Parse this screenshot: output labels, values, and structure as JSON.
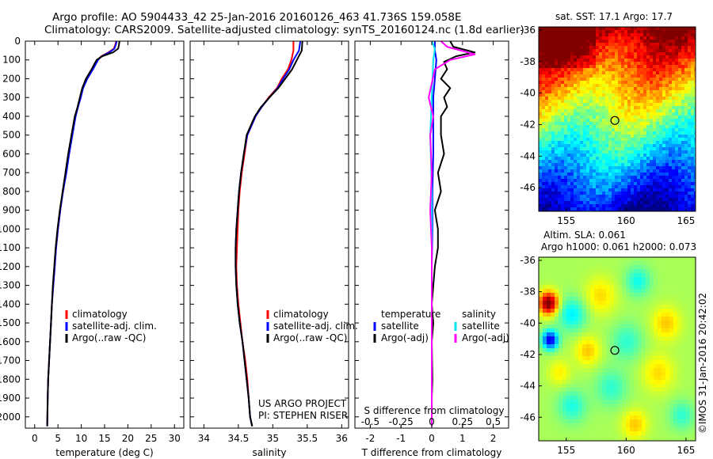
{
  "header": {
    "line1": "Argo profile: AO 5904433_42 25-Jan-2016 20160126_463 41.736S 159.058E",
    "line2": "Climatology: CARS2009. Satellite-adjusted climatology: synTS_20160124.nc (1.8d earlier)"
  },
  "side_text": "©IMOS 31-Jan-2016 20:42:02",
  "colors": {
    "climatology": "#ff0000",
    "satellite": "#0000ff",
    "argo": "#000000",
    "sal_satellite": "#00e5ee",
    "sal_argo": "#ff00ff"
  },
  "chart_data": [
    {
      "id": "temperature",
      "type": "line",
      "xlabel": "temperature (deg C)",
      "ylabel": "",
      "xlim": [
        -2,
        32
      ],
      "ylim": [
        2060,
        0
      ],
      "xticks": [
        0,
        5,
        10,
        15,
        20,
        25,
        30
      ],
      "xtick_labels": [
        "0",
        "5",
        "10",
        "15",
        "20",
        "25",
        "30"
      ],
      "yticks": [
        0,
        100,
        200,
        300,
        400,
        500,
        600,
        700,
        800,
        900,
        1000,
        1100,
        1200,
        1300,
        1400,
        1500,
        1600,
        1700,
        1800,
        1900,
        2000
      ],
      "ytick_labels": [
        "0",
        "100",
        "200",
        "300",
        "400",
        "500",
        "600",
        "700",
        "800",
        "900",
        "1000",
        "1100",
        "1200",
        "1300",
        "1400",
        "1500",
        "1600",
        "1700",
        "1800",
        "1900",
        "2000"
      ],
      "legend": [
        {
          "label": "climatology",
          "color_key": "climatology"
        },
        {
          "label": "satellite-adj. clim.",
          "color_key": "satellite"
        },
        {
          "label": "Argo(..raw -QC)",
          "color_key": "argo"
        }
      ],
      "series": [
        {
          "name": "climatology",
          "color_key": "climatology",
          "x": [
            17.5,
            17.3,
            17.0,
            15.8,
            14.3,
            13.5,
            12.4,
            11.2,
            10.3,
            9.8,
            9.3,
            8.7,
            8.0,
            7.3,
            6.7,
            6.0,
            5.5,
            5.0,
            4.6,
            4.3,
            4.0,
            3.7,
            3.5,
            3.3,
            3.1,
            2.9,
            2.8,
            2.7
          ],
          "y": [
            0,
            20,
            40,
            60,
            80,
            100,
            150,
            200,
            250,
            300,
            350,
            400,
            500,
            600,
            700,
            800,
            900,
            1000,
            1100,
            1200,
            1300,
            1400,
            1500,
            1600,
            1700,
            1800,
            1900,
            2050
          ]
        },
        {
          "name": "satellite-adj. clim.",
          "color_key": "satellite",
          "x": [
            17.6,
            17.4,
            17.1,
            16.0,
            14.4,
            13.6,
            12.5,
            11.3,
            10.4,
            9.9,
            9.3,
            8.8,
            8.1,
            7.4,
            6.8,
            6.1,
            5.5,
            5.0,
            4.6,
            4.3,
            4.0,
            3.7,
            3.5,
            3.3,
            3.1,
            2.9,
            2.8,
            2.7
          ],
          "y": [
            0,
            20,
            40,
            60,
            80,
            100,
            150,
            200,
            250,
            300,
            350,
            400,
            500,
            600,
            700,
            800,
            900,
            1000,
            1100,
            1200,
            1300,
            1400,
            1500,
            1600,
            1700,
            1800,
            1900,
            2050
          ]
        },
        {
          "name": "Argo(..raw -QC)",
          "color_key": "argo",
          "x": [
            18.2,
            18.1,
            17.9,
            16.8,
            14.5,
            13.3,
            12.2,
            11.0,
            10.2,
            9.7,
            9.2,
            8.6,
            7.9,
            7.2,
            6.6,
            6.0,
            5.4,
            4.9,
            4.5,
            4.2,
            3.9,
            3.7,
            3.5,
            3.3,
            3.1,
            2.9,
            2.8,
            2.7
          ],
          "y": [
            0,
            20,
            40,
            60,
            80,
            100,
            150,
            200,
            250,
            300,
            350,
            400,
            500,
            600,
            700,
            800,
            900,
            1000,
            1100,
            1200,
            1300,
            1400,
            1500,
            1600,
            1700,
            1800,
            1900,
            2050
          ]
        }
      ]
    },
    {
      "id": "salinity",
      "type": "line",
      "xlabel": "salinity",
      "xlim": [
        33.8,
        36.1
      ],
      "ylim": [
        2060,
        0
      ],
      "xticks": [
        34,
        34.5,
        35,
        35.5,
        36
      ],
      "xtick_labels": [
        "34",
        "34.5",
        "35",
        "35.5",
        "36"
      ],
      "legend": [
        {
          "label": "climatology",
          "color_key": "climatology"
        },
        {
          "label": "satellite-adj. clim.",
          "color_key": "satellite"
        },
        {
          "label": "Argo(..raw -QC)",
          "color_key": "argo"
        }
      ],
      "annotation": [
        "US ARGO PROJECT",
        "PI: STEPHEN RISER"
      ],
      "series": [
        {
          "name": "climatology",
          "color_key": "climatology",
          "x": [
            35.3,
            35.3,
            35.27,
            35.22,
            35.13,
            35.06,
            34.94,
            34.84,
            34.75,
            34.69,
            34.63,
            34.59,
            34.55,
            34.52,
            34.5,
            34.49,
            34.48,
            34.47,
            34.48,
            34.5,
            34.53,
            34.56,
            34.6,
            34.63,
            34.65,
            34.67,
            34.7
          ],
          "y": [
            0,
            50,
            100,
            150,
            200,
            250,
            300,
            350,
            400,
            450,
            500,
            600,
            700,
            800,
            900,
            1000,
            1100,
            1200,
            1300,
            1400,
            1500,
            1600,
            1700,
            1800,
            1900,
            2000,
            2050
          ]
        },
        {
          "name": "satellite-adj. clim.",
          "color_key": "satellite",
          "x": [
            35.4,
            35.38,
            35.3,
            35.24,
            35.15,
            35.07,
            34.95,
            34.84,
            34.75,
            34.69,
            34.63,
            34.58,
            34.54,
            34.51,
            34.49,
            34.47,
            34.46,
            34.46,
            34.47,
            34.49,
            34.52,
            34.56,
            34.59,
            34.62,
            34.65,
            34.67,
            34.7
          ],
          "y": [
            0,
            50,
            100,
            150,
            200,
            250,
            300,
            350,
            400,
            450,
            500,
            600,
            700,
            800,
            900,
            1000,
            1100,
            1200,
            1300,
            1400,
            1500,
            1600,
            1700,
            1800,
            1900,
            2000,
            2050
          ]
        },
        {
          "name": "Argo(..raw -QC)",
          "color_key": "argo",
          "x": [
            35.43,
            35.42,
            35.35,
            35.28,
            35.18,
            35.08,
            34.95,
            34.83,
            34.74,
            34.68,
            34.62,
            34.58,
            34.54,
            34.51,
            34.49,
            34.47,
            34.46,
            34.46,
            34.47,
            34.49,
            34.52,
            34.56,
            34.59,
            34.62,
            34.65,
            34.67,
            34.7
          ],
          "y": [
            0,
            50,
            100,
            150,
            200,
            250,
            300,
            350,
            400,
            450,
            500,
            600,
            700,
            800,
            900,
            1000,
            1100,
            1200,
            1300,
            1400,
            1500,
            1600,
            1700,
            1800,
            1900,
            2000,
            2050
          ]
        }
      ]
    },
    {
      "id": "difference",
      "type": "line",
      "xlabel": "T difference from climatology",
      "top_axis_label": "S difference from climatology",
      "xlim": [
        -2.5,
        2.5
      ],
      "ylim": [
        2060,
        0
      ],
      "xticks": [
        -2,
        -1,
        0,
        1,
        2
      ],
      "xtick_labels": [
        "-2",
        "-1",
        "0",
        "1",
        "2"
      ],
      "top_ticks": [
        -0.5,
        -0.25,
        0,
        0.25,
        0.5
      ],
      "top_tick_labels": [
        "-0.5",
        "-0.25",
        "0",
        "0.25",
        "0.5"
      ],
      "legend_headers": [
        "temperature",
        "salinity"
      ],
      "legend": [
        {
          "label": "satellite",
          "color_key": "satellite",
          "column": 0
        },
        {
          "label": "Argo(-adj)",
          "color_key": "argo",
          "column": 0
        },
        {
          "label": "satellite",
          "color_key": "sal_satellite",
          "column": 1
        },
        {
          "label": "Argo(-adj)",
          "color_key": "sal_argo",
          "column": 1
        }
      ],
      "series": [
        {
          "name": "T satellite",
          "color_key": "satellite",
          "x": [
            0.1,
            0.1,
            0.15,
            0.1,
            0.05,
            0.05,
            0.05,
            0.02,
            0.02,
            0.0,
            0.0,
            0.0,
            0.0,
            0.0
          ],
          "y": [
            0,
            50,
            100,
            200,
            300,
            400,
            600,
            800,
            1000,
            1200,
            1400,
            1600,
            1800,
            2050
          ]
        },
        {
          "name": "T Argo(-adj)",
          "color_key": "argo",
          "x": [
            0.6,
            0.7,
            1.4,
            0.8,
            0.4,
            0.5,
            0.3,
            0.6,
            0.4,
            0.5,
            0.3,
            0.3,
            0.4,
            0.2,
            0.3,
            0.1,
            0.2,
            0.2,
            0.1,
            0.0,
            0.05,
            0.0,
            0.02,
            0.0,
            0.0
          ],
          "y": [
            0,
            30,
            60,
            80,
            110,
            150,
            200,
            250,
            300,
            350,
            400,
            500,
            600,
            700,
            800,
            900,
            1000,
            1100,
            1200,
            1400,
            1500,
            1600,
            1800,
            1900,
            2050
          ]
        },
        {
          "name": "S satellite",
          "color_key": "sal_satellite",
          "x": [
            0.0,
            0.1,
            0.05,
            0.0,
            -0.05,
            0.0,
            0.0,
            0.0,
            0.0,
            0.0
          ],
          "y": [
            0,
            40,
            100,
            300,
            500,
            800,
            1100,
            1400,
            1700,
            2050
          ]
        },
        {
          "name": "S Argo(-adj)",
          "color_key": "sal_argo",
          "x": [
            0.3,
            0.5,
            1.4,
            0.6,
            0.1,
            -0.1,
            0.05,
            -0.05,
            0.0,
            -0.05,
            0.0,
            0.0,
            0.0
          ],
          "y": [
            0,
            30,
            70,
            100,
            150,
            300,
            400,
            500,
            700,
            900,
            1100,
            1400,
            2050
          ]
        }
      ]
    },
    {
      "id": "sst_map",
      "type": "heatmap",
      "title": "sat. SST: 17.1  Argo: 17.7",
      "xlim": [
        152.7,
        165.8
      ],
      "ylim": [
        -47.5,
        -35.8
      ],
      "xticks": [
        155,
        160,
        165
      ],
      "xtick_labels": [
        "155",
        "160",
        "165"
      ],
      "yticks": [
        -36,
        -38,
        -40,
        -42,
        -44,
        -46
      ],
      "ytick_labels": [
        "-36",
        "-38",
        "-40",
        "-42",
        "-44",
        "-46"
      ],
      "marker": {
        "lon": 159.058,
        "lat": -41.736
      }
    },
    {
      "id": "sla_map",
      "type": "heatmap",
      "title": "Altim. SLA: 0.061",
      "subtitle": "Argo h1000: 0.061 h2000: 0.073",
      "xlim": [
        152.7,
        165.8
      ],
      "ylim": [
        -47.5,
        -35.8
      ],
      "xticks": [
        155,
        160,
        165
      ],
      "xtick_labels": [
        "155",
        "160",
        "165"
      ],
      "yticks": [
        -36,
        -38,
        -40,
        -42,
        -44,
        -46
      ],
      "ytick_labels": [
        "-36",
        "-38",
        "-40",
        "-42",
        "-44",
        "-46"
      ],
      "marker": {
        "lon": 159.058,
        "lat": -41.736
      }
    }
  ]
}
